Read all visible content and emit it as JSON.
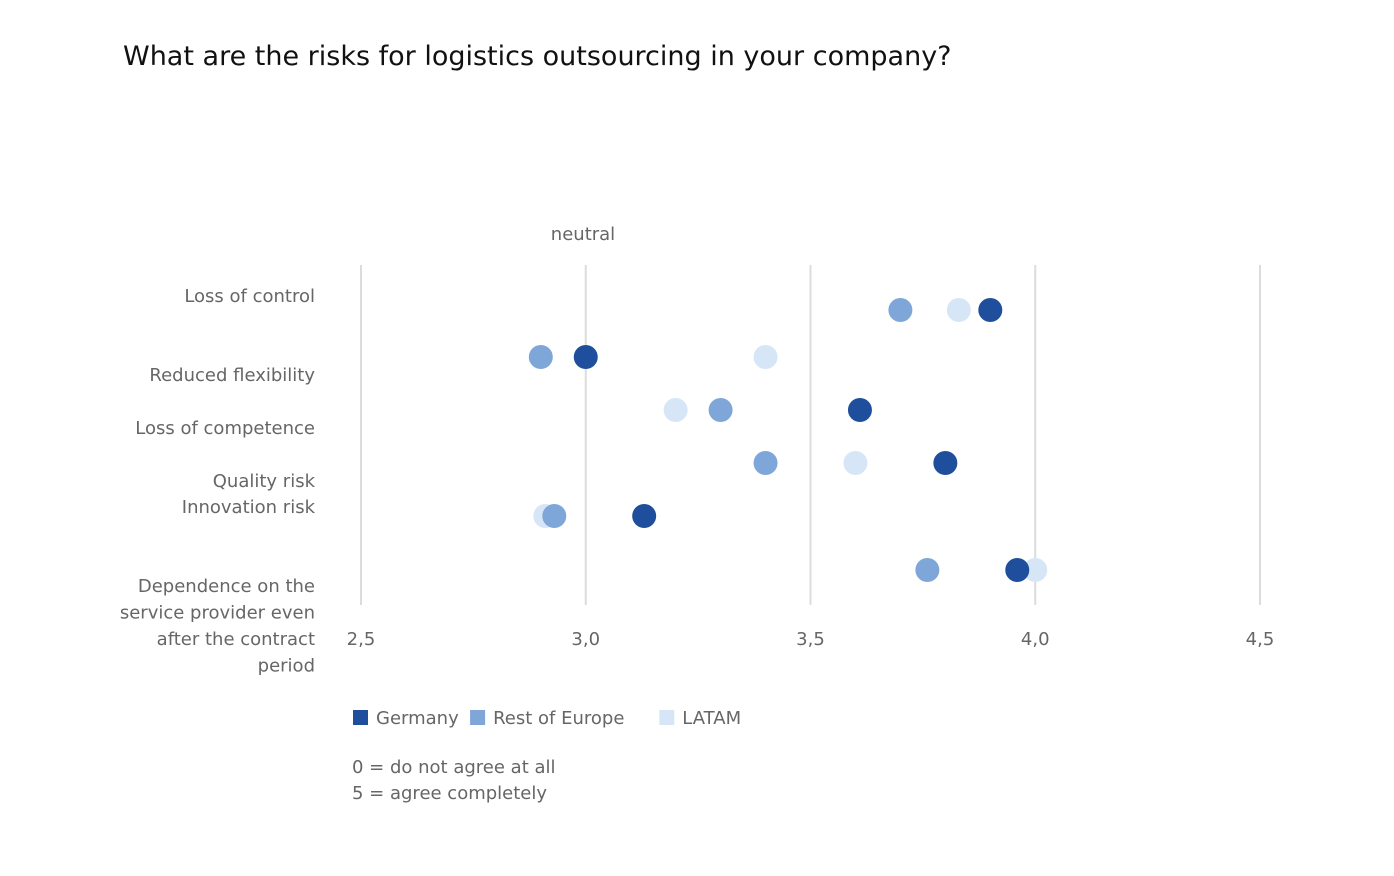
{
  "chart_data": {
    "type": "scatter",
    "title": "What are the risks for logistics outsourcing in your company?",
    "annotation": "neutral",
    "xlim": [
      2.5,
      4.5
    ],
    "x_ticks": [
      2.5,
      3.0,
      3.5,
      4.0,
      4.5
    ],
    "x_tick_labels": [
      "2,5",
      "3,0",
      "3,5",
      "4,0",
      "4,5"
    ],
    "grid": true,
    "legend_position": "bottom-left",
    "categories": [
      "Loss of control",
      "Reduced flexibility",
      "Loss of competence",
      "Quality risk",
      "Innovation risk",
      "Dependence on the service provider even after the contract period"
    ],
    "category_label_lines": [
      [
        "Loss of control"
      ],
      [
        "Reduced flexibility"
      ],
      [
        "Loss of competence"
      ],
      [
        "Quality risk"
      ],
      [
        "Innovation risk"
      ],
      [
        "Dependence on the",
        "service provider even",
        "after the contract",
        "period"
      ]
    ],
    "series": [
      {
        "name": "LATAM",
        "color": "#d6e6f7",
        "values": [
          3.83,
          3.4,
          3.2,
          3.6,
          2.91,
          4.0
        ]
      },
      {
        "name": "Rest of Europe",
        "color": "#7ea6d9",
        "values": [
          3.7,
          2.9,
          3.3,
          3.4,
          2.93,
          3.76
        ]
      },
      {
        "name": "Germany",
        "color": "#1f4f9c",
        "values": [
          3.9,
          3.0,
          3.61,
          3.8,
          3.13,
          3.96
        ]
      }
    ],
    "legend": [
      {
        "name": "Germany",
        "color": "#1f4f9c"
      },
      {
        "name": "Rest of Europe",
        "color": "#7ea6d9"
      },
      {
        "name": "LATAM",
        "color": "#d6e6f7"
      }
    ],
    "notes": [
      "0 = do not agree at all",
      "5 = agree completely"
    ]
  }
}
